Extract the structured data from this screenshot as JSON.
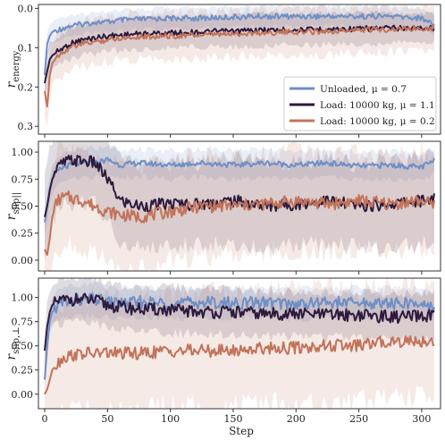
{
  "colors": {
    "unloaded": "#6e8fc6",
    "load11": "#2e1a3d",
    "load02": "#c2735a",
    "frame": "#333333"
  },
  "shared": {
    "xlabel": "Step",
    "xticks": [
      0,
      50,
      100,
      150,
      200,
      250,
      300
    ],
    "xlim": [
      -5,
      315
    ]
  },
  "legend": {
    "entries": [
      "Unloaded, μ = 0.7",
      "Load: 10000 kg, μ = 1.1",
      "Load: 10000 kg, μ = 0.2"
    ]
  },
  "chart_data": [
    {
      "type": "line",
      "ylabel": "r_energy",
      "ylabel_main": "r",
      "ylabel_sub": "energy",
      "ylim": [
        0.32,
        -0.01
      ],
      "y_inverted": true,
      "yticks": [
        0.0,
        0.1,
        0.2,
        0.3
      ],
      "ytick_labels": [
        "0.0",
        "0.1",
        "0.2",
        "0.3"
      ],
      "legend_position": "right",
      "x": [
        0,
        2,
        4,
        6,
        10,
        15,
        20,
        30,
        40,
        50,
        60,
        75,
        100,
        125,
        150,
        175,
        200,
        225,
        250,
        275,
        300,
        310
      ],
      "series": [
        {
          "name": "Unloaded, μ = 0.7",
          "color_key": "unloaded",
          "values": [
            0.17,
            0.09,
            0.07,
            0.06,
            0.055,
            0.05,
            0.045,
            0.04,
            0.035,
            0.035,
            0.03,
            0.028,
            0.025,
            0.025,
            0.022,
            0.02,
            0.02,
            0.02,
            0.02,
            0.02,
            0.025,
            0.04
          ],
          "band": 0.02
        },
        {
          "name": "Load: 10000 kg, μ = 1.1",
          "color_key": "load11",
          "values": [
            0.19,
            0.16,
            0.13,
            0.12,
            0.11,
            0.1,
            0.09,
            0.08,
            0.075,
            0.07,
            0.068,
            0.065,
            0.062,
            0.06,
            0.058,
            0.055,
            0.055,
            0.053,
            0.052,
            0.05,
            0.05,
            0.05
          ],
          "band": 0.03
        },
        {
          "name": "Load: 10000 kg, μ = 0.2",
          "color_key": "load02",
          "values": [
            0.21,
            0.25,
            0.17,
            0.14,
            0.12,
            0.11,
            0.1,
            0.09,
            0.085,
            0.08,
            0.075,
            0.072,
            0.07,
            0.068,
            0.065,
            0.062,
            0.06,
            0.058,
            0.055,
            0.053,
            0.05,
            0.05
          ],
          "band": 0.045
        }
      ]
    },
    {
      "type": "line",
      "ylabel": "r_slip||",
      "ylabel_main": "r",
      "ylabel_sub": "slip||",
      "ylim": [
        -0.1,
        1.1
      ],
      "y_inverted": false,
      "yticks": [
        0.0,
        0.25,
        0.5,
        0.75,
        1.0
      ],
      "ytick_labels": [
        "0.00",
        "0.25",
        "0.50",
        "0.75",
        "1.00"
      ],
      "x": [
        0,
        2,
        4,
        6,
        10,
        15,
        20,
        30,
        40,
        50,
        60,
        75,
        100,
        125,
        150,
        175,
        200,
        225,
        250,
        275,
        300,
        310
      ],
      "series": [
        {
          "name": "Unloaded, μ = 0.7",
          "color_key": "unloaded",
          "values": [
            0.35,
            0.5,
            0.65,
            0.75,
            0.82,
            0.86,
            0.88,
            0.9,
            0.9,
            0.93,
            0.88,
            0.9,
            0.88,
            0.9,
            0.88,
            0.9,
            0.88,
            0.9,
            0.87,
            0.88,
            0.86,
            0.92
          ],
          "band": 0.1
        },
        {
          "name": "Load: 10000 kg, μ = 1.1",
          "color_key": "load11",
          "values": [
            0.4,
            0.5,
            0.65,
            0.75,
            0.85,
            0.9,
            0.92,
            0.92,
            0.9,
            0.75,
            0.55,
            0.5,
            0.52,
            0.52,
            0.55,
            0.5,
            0.52,
            0.55,
            0.5,
            0.52,
            0.55,
            0.58
          ],
          "band": 0.3
        },
        {
          "name": "Load: 10000 kg, μ = 0.2",
          "color_key": "load02",
          "values": [
            0.1,
            0.05,
            0.2,
            0.4,
            0.55,
            0.58,
            0.58,
            0.55,
            0.5,
            0.45,
            0.42,
            0.4,
            0.45,
            0.5,
            0.5,
            0.52,
            0.55,
            0.52,
            0.55,
            0.52,
            0.55,
            0.5
          ],
          "band": 0.35
        }
      ]
    },
    {
      "type": "line",
      "ylabel": "r_slip⊥",
      "ylabel_main": "r",
      "ylabel_sub": "slip,⊥",
      "ylim": [
        -0.15,
        1.2
      ],
      "y_inverted": false,
      "yticks": [
        0.0,
        0.25,
        0.5,
        0.75,
        1.0
      ],
      "ytick_labels": [
        "0.00",
        "0.25",
        "0.50",
        "0.75",
        "1.00"
      ],
      "x": [
        0,
        2,
        4,
        6,
        10,
        15,
        20,
        30,
        40,
        50,
        60,
        75,
        100,
        125,
        150,
        175,
        200,
        225,
        250,
        275,
        300,
        310
      ],
      "series": [
        {
          "name": "Unloaded, μ = 0.7",
          "color_key": "unloaded",
          "values": [
            0.15,
            0.5,
            0.75,
            0.85,
            0.92,
            0.95,
            0.96,
            0.97,
            0.98,
            0.95,
            0.94,
            0.95,
            0.94,
            0.95,
            0.94,
            0.95,
            0.93,
            0.95,
            0.94,
            0.94,
            0.93,
            0.9
          ],
          "band": 0.12
        },
        {
          "name": "Load: 10000 kg, μ = 1.1",
          "color_key": "load11",
          "values": [
            0.45,
            0.7,
            0.85,
            0.92,
            0.96,
            0.97,
            0.98,
            0.98,
            0.97,
            0.92,
            0.9,
            0.88,
            0.87,
            0.85,
            0.85,
            0.83,
            0.83,
            0.82,
            0.82,
            0.8,
            0.8,
            0.82
          ],
          "band": 0.18
        },
        {
          "name": "Load: 10000 kg, μ = 0.2",
          "color_key": "load02",
          "values": [
            0.0,
            0.05,
            0.15,
            0.25,
            0.32,
            0.38,
            0.4,
            0.42,
            0.42,
            0.43,
            0.42,
            0.42,
            0.45,
            0.45,
            0.45,
            0.48,
            0.48,
            0.5,
            0.5,
            0.55,
            0.55,
            0.55
          ],
          "band": 0.45
        }
      ]
    }
  ]
}
